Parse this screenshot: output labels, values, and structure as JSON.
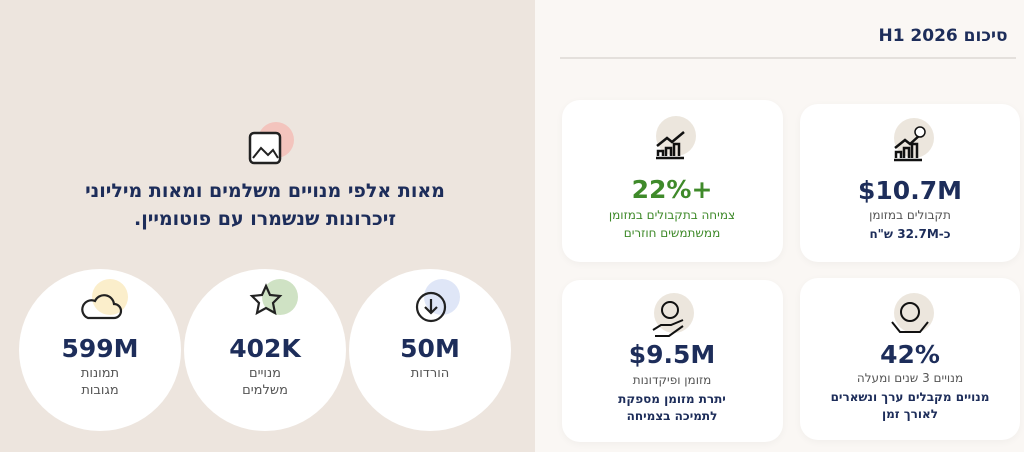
{
  "summary": {
    "title": "סיכום H1 2026",
    "cards": [
      {
        "value": "$10.7M",
        "label": [
          "תקבולים במזומן"
        ],
        "note": [
          "כ-32.7M ש\"ח"
        ]
      },
      {
        "value": "+22%",
        "label": [
          "צמיחה בתקבולים במזומן",
          "ממשתמשים חוזרים"
        ]
      },
      {
        "value": "$9.5M",
        "label": [
          "מזומן ופיקדונות"
        ],
        "note": [
          "יתרת מזומן מספקת",
          "לתמיכה בצמיחה"
        ]
      },
      {
        "value": "42%",
        "label": [
          "מנויים 3 שנים ומעלה"
        ],
        "note": [
          "מנויים מקבלים ערך ונשארים",
          "לאורך זמן"
        ]
      }
    ]
  },
  "highlights": {
    "headline": [
      "מאות אלפי מנויים משלמים ומאות מיליוני",
      "זיכרונות שנשמרו עם פוטומיין."
    ],
    "stats": [
      {
        "value": "599M",
        "label": [
          "תמונות",
          "מגובות"
        ]
      },
      {
        "value": "402K",
        "label": [
          "מנויים",
          "משלמים"
        ]
      },
      {
        "value": "50M",
        "label": [
          "הורדות"
        ]
      }
    ]
  }
}
